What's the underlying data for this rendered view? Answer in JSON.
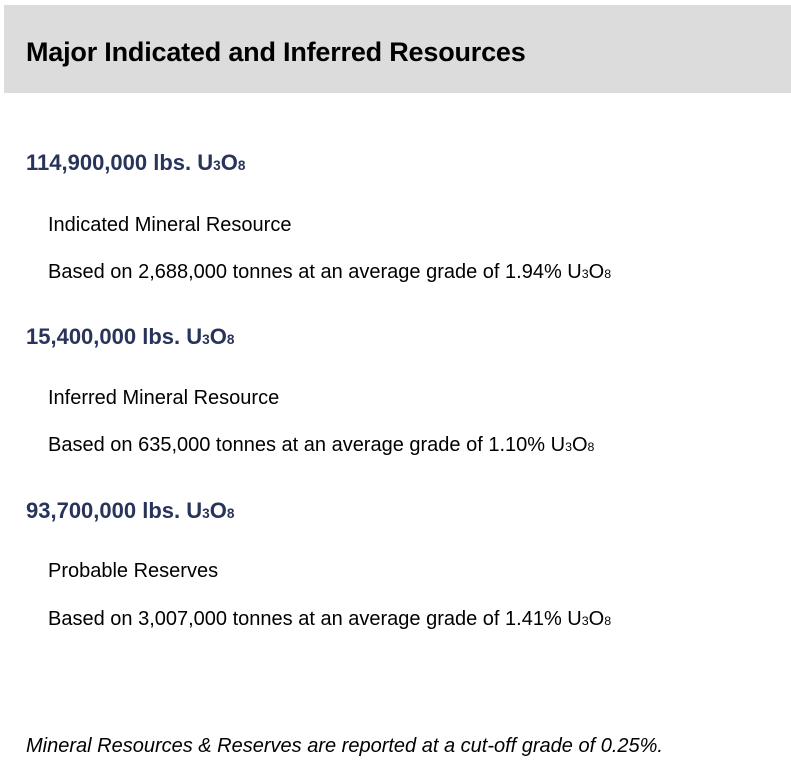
{
  "header": {
    "title": "Major Indicated and Inferred Resources"
  },
  "resources": [
    {
      "amount": "114,900,000 lbs.",
      "formula": "U3O8",
      "category": "Indicated Mineral Resource",
      "basis": "Based on 2,688,000 tonnes at an average grade of 1.94%",
      "basis_formula": "U3O8"
    },
    {
      "amount": "15,400,000 lbs.",
      "formula": "U3O8",
      "category": "Inferred Mineral Resource",
      "basis": "Based on 635,000 tonnes at an average grade of 1.10%",
      "basis_formula": "U3O8"
    },
    {
      "amount": "93,700,000 lbs.",
      "formula": "U3O8",
      "category": "Probable Reserves",
      "basis": "Based on 3,007,000 tonnes at an average grade of 1.41%",
      "basis_formula": "U3O8"
    }
  ],
  "footnote": "Mineral Resources & Reserves are reported at a cut-off grade of 0.25%.",
  "colors": {
    "header_bg": "#dcdcdc",
    "accent": "#28345a"
  }
}
